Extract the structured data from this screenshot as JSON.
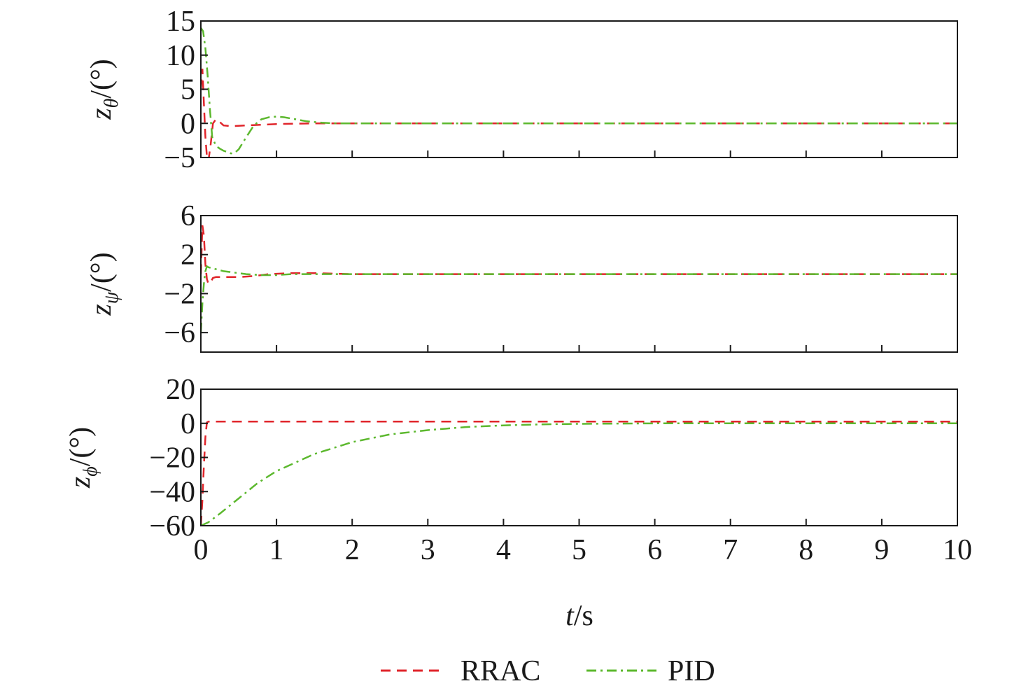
{
  "chart_data": {
    "type": "line",
    "xlabel_italic": "t",
    "xlabel_rest": "/s",
    "xlim": [
      0,
      10
    ],
    "xticks": [
      0,
      1,
      2,
      3,
      4,
      5,
      6,
      7,
      8,
      9,
      10
    ],
    "legend_position": "bottom-center",
    "series_styles": [
      {
        "name": "RRAC",
        "color": "#e0252b",
        "dash": "14 9"
      },
      {
        "name": "PID",
        "color": "#5cb82e",
        "dash": "14 6 3 6"
      }
    ],
    "subplots": [
      {
        "ylabel_var": "z",
        "ylabel_sub": "θ",
        "ylabel_unit": "/(°)",
        "ylim": [
          -5,
          15
        ],
        "yticks": [
          -5,
          0,
          5,
          10,
          15
        ],
        "ytick_labels": [
          "−5",
          "0",
          "5",
          "10",
          "15"
        ],
        "series": [
          {
            "name": "RRAC",
            "x": [
              0,
              0.02,
              0.04,
              0.06,
              0.08,
              0.1,
              0.13,
              0.16,
              0.2,
              0.25,
              0.3,
              0.4,
              0.6,
              1.0,
              1.5,
              2.0,
              3.0,
              5.0,
              10.0
            ],
            "y": [
              5,
              8,
              3,
              -2,
              -4.8,
              -5.5,
              -3,
              0,
              0.6,
              0.2,
              -0.3,
              -0.4,
              -0.3,
              -0.1,
              0,
              0,
              0,
              0,
              0
            ]
          },
          {
            "name": "PID",
            "x": [
              0,
              0.03,
              0.06,
              0.09,
              0.12,
              0.15,
              0.2,
              0.25,
              0.3,
              0.35,
              0.4,
              0.45,
              0.5,
              0.6,
              0.7,
              0.8,
              0.9,
              1.0,
              1.1,
              1.2,
              1.4,
              1.6,
              1.8,
              2.0,
              3.0,
              5.0,
              10.0
            ],
            "y": [
              14,
              13.5,
              11,
              7,
              2,
              -2,
              -3.3,
              -3.7,
              -4,
              -4.2,
              -4.4,
              -4.3,
              -3.8,
              -2,
              -0.3,
              0.6,
              0.9,
              1.0,
              0.9,
              0.7,
              0.3,
              0.1,
              0,
              0,
              0,
              0,
              0
            ]
          }
        ]
      },
      {
        "ylabel_var": "z",
        "ylabel_sub": "ψ",
        "ylabel_unit": "/(°)",
        "ylim": [
          -8,
          6
        ],
        "yticks": [
          -6,
          -2,
          2,
          6
        ],
        "ytick_labels": [
          "−6",
          "−2",
          "2",
          "6"
        ],
        "series": [
          {
            "name": "RRAC",
            "x": [
              0,
              0.02,
              0.04,
              0.06,
              0.08,
              0.1,
              0.13,
              0.16,
              0.2,
              0.3,
              0.5,
              0.7,
              0.9,
              1.2,
              1.5,
              2.0,
              3.0,
              5.0,
              10.0
            ],
            "y": [
              0,
              5,
              4,
              1,
              -0.5,
              -1,
              -0.8,
              -0.4,
              -0.3,
              -0.3,
              -0.3,
              -0.2,
              0,
              0.1,
              0.1,
              0,
              0,
              0,
              0
            ]
          },
          {
            "name": "PID",
            "x": [
              0,
              0.02,
              0.04,
              0.06,
              0.08,
              0.1,
              0.15,
              0.2,
              0.3,
              0.4,
              0.6,
              0.8,
              1.0,
              1.2,
              1.5,
              2.0,
              3.0,
              5.0,
              10.0
            ],
            "y": [
              -6,
              -3,
              -1,
              0.3,
              0.8,
              0.7,
              0.6,
              0.5,
              0.3,
              0.2,
              0,
              -0.1,
              -0.1,
              0,
              0,
              0,
              0,
              0,
              0
            ]
          }
        ]
      },
      {
        "ylabel_var": "z",
        "ylabel_sub": "ϕ",
        "ylabel_unit": "/(°)",
        "ylim": [
          -60,
          20
        ],
        "yticks": [
          -60,
          -40,
          -20,
          0,
          20
        ],
        "ytick_labels": [
          "−60",
          "−40",
          "−20",
          "0",
          "20"
        ],
        "series": [
          {
            "name": "RRAC",
            "x": [
              0,
              0.02,
              0.04,
              0.06,
              0.08,
              0.1,
              0.12,
              0.15,
              0.2,
              1,
              3,
              5,
              7,
              10
            ],
            "y": [
              -60,
              -45,
              -25,
              -8,
              0.5,
              1,
              1,
              1,
              1,
              1,
              1,
              1,
              1,
              1
            ]
          },
          {
            "name": "PID",
            "x": [
              0,
              0.1,
              0.25,
              0.5,
              0.75,
              1.0,
              1.5,
              2.0,
              2.5,
              3.0,
              3.5,
              4.0,
              4.5,
              5.0,
              6.0,
              7.0,
              8.0,
              9.0,
              10.0
            ],
            "y": [
              -60,
              -58,
              -53,
              -44,
              -35,
              -28,
              -18,
              -11,
              -6.5,
              -4,
              -2.2,
              -1.2,
              -0.6,
              -0.3,
              0,
              0,
              0,
              0,
              0
            ]
          }
        ]
      }
    ]
  }
}
